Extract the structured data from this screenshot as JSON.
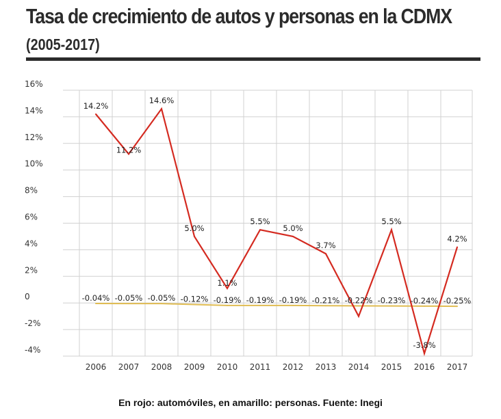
{
  "header": {
    "title": "Tasa de crecimiento de autos y personas en la CDMX",
    "subtitle": "(2005-2017)"
  },
  "caption": "En rojo: automóviles, en amarillo: personas. Fuente: Inegi",
  "chart_data": {
    "type": "line",
    "x": [
      "2006",
      "2007",
      "2008",
      "2009",
      "2010",
      "2011",
      "2012",
      "2013",
      "2014",
      "2015",
      "2016",
      "2017"
    ],
    "y_ticks": [
      "16%",
      "14%",
      "12%",
      "10%",
      "8%",
      "6%",
      "4%",
      "2%",
      "0",
      "-2%",
      "-4%"
    ],
    "ylim": [
      -4,
      16
    ],
    "grid": true,
    "series": [
      {
        "color": "#d42a20",
        "values": [
          14.2,
          11.2,
          14.6,
          5.0,
          1.1,
          5.5,
          5.0,
          3.7,
          -1.0,
          5.5,
          -3.8,
          4.2
        ],
        "labels": [
          "14.2%",
          "11.2%",
          "14.6%",
          "5.0%",
          "1.1%",
          "5.5%",
          "5.0%",
          "3.7%",
          "",
          "5.5%",
          "-3.8%",
          "4.2%"
        ]
      },
      {
        "color": "#e0bc52",
        "values": [
          -0.04,
          -0.05,
          -0.05,
          -0.12,
          -0.19,
          -0.19,
          -0.19,
          -0.21,
          -0.22,
          -0.23,
          -0.24,
          -0.25
        ],
        "labels": [
          "-0.04%",
          "-0.05%",
          "-0.05%",
          "-0.12%",
          "-0.19%",
          "-0.19%",
          "-0.19%",
          "-0.21%",
          "-0.22%",
          "-0.23%",
          "-0.24%",
          "-0.25%"
        ]
      }
    ]
  }
}
